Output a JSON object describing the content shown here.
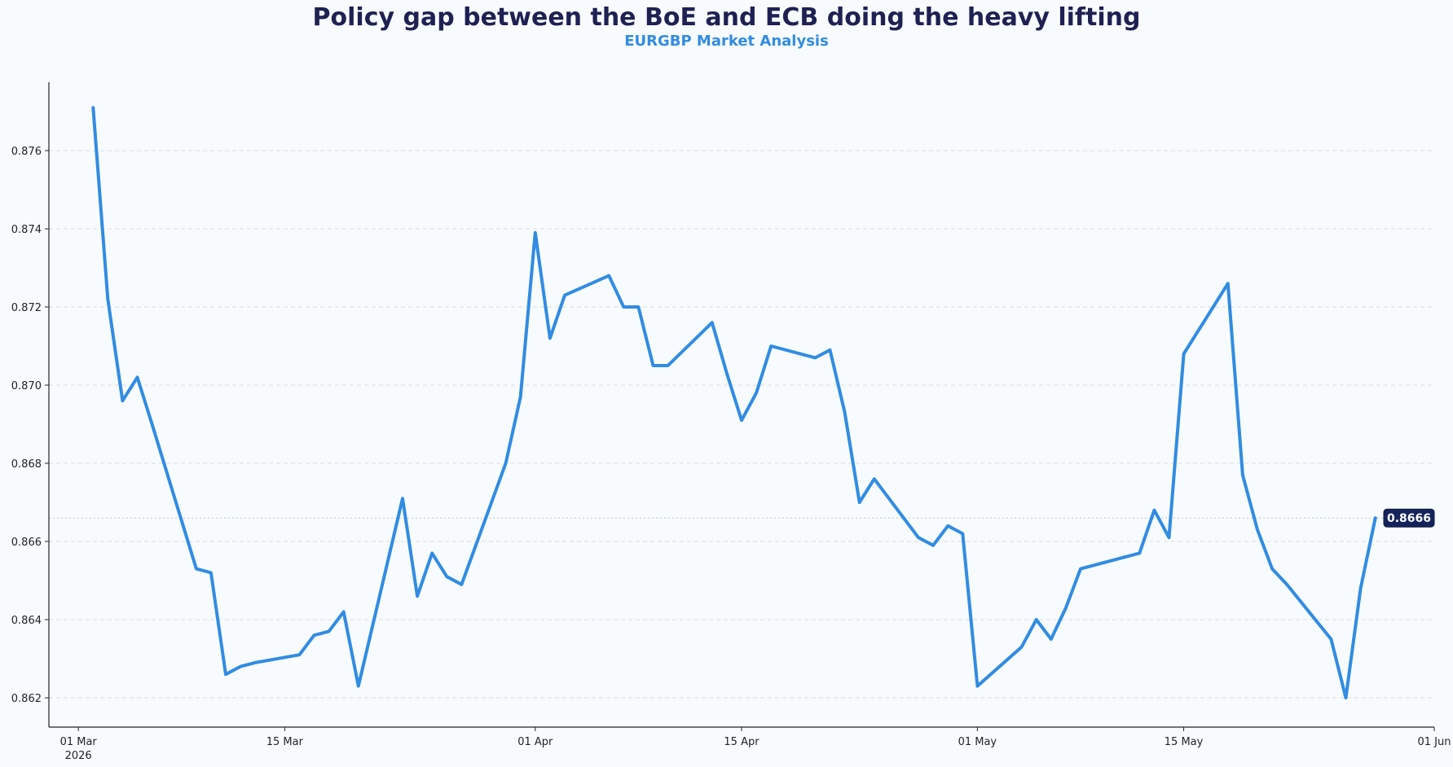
{
  "colors": {
    "background": "#f8fbfe",
    "title": "#1e2152",
    "subtitle": "#318ce2",
    "line": "#318ce2",
    "badge_bg": "#14235a",
    "badge_text": "#ffffff",
    "grid": "#d8dde3",
    "axis": "#222222"
  },
  "chart_data": {
    "type": "line",
    "title": "Policy gap between the BoE and ECB doing the heavy lifting",
    "subtitle": "EURGBP Market Analysis",
    "xlabel": "",
    "ylabel": "",
    "grid": "horizontal dashed",
    "xlim": [
      "2026-02-27",
      "2026-06-01"
    ],
    "ylim": [
      0.86125,
      0.87775
    ],
    "y_ticks": [
      0.862,
      0.864,
      0.866,
      0.868,
      0.87,
      0.872,
      0.874,
      0.876
    ],
    "y_tick_labels": [
      "0.862",
      "0.864",
      "0.866",
      "0.868",
      "0.870",
      "0.872",
      "0.874",
      "0.876"
    ],
    "x_ticks": [
      {
        "date": "2026-03-01",
        "label": "01 Mar",
        "sublabel": "2026"
      },
      {
        "date": "2026-03-15",
        "label": "15 Mar",
        "sublabel": ""
      },
      {
        "date": "2026-04-01",
        "label": "01 Apr",
        "sublabel": ""
      },
      {
        "date": "2026-04-15",
        "label": "15 Apr",
        "sublabel": ""
      },
      {
        "date": "2026-05-01",
        "label": "01 May",
        "sublabel": ""
      },
      {
        "date": "2026-05-15",
        "label": "15 May",
        "sublabel": ""
      },
      {
        "date": "2026-06-01",
        "label": "01 Jun",
        "sublabel": ""
      }
    ],
    "last_value_label": "0.8666",
    "reference_line": 0.8666,
    "series": [
      {
        "x": [
          "2026-03-02",
          "2026-03-03",
          "2026-03-04",
          "2026-03-05",
          "2026-03-06",
          "2026-03-09",
          "2026-03-10",
          "2026-03-11",
          "2026-03-12",
          "2026-03-13",
          "2026-03-16",
          "2026-03-17",
          "2026-03-18",
          "2026-03-19",
          "2026-03-20",
          "2026-03-23",
          "2026-03-24",
          "2026-03-25",
          "2026-03-26",
          "2026-03-27",
          "2026-03-30",
          "2026-03-31",
          "2026-04-01",
          "2026-04-02",
          "2026-04-03",
          "2026-04-06",
          "2026-04-07",
          "2026-04-08",
          "2026-04-09",
          "2026-04-10",
          "2026-04-13",
          "2026-04-14",
          "2026-04-15",
          "2026-04-16",
          "2026-04-17",
          "2026-04-20",
          "2026-04-21",
          "2026-04-22",
          "2026-04-23",
          "2026-04-24",
          "2026-04-27",
          "2026-04-28",
          "2026-04-29",
          "2026-04-30",
          "2026-05-01",
          "2026-05-04",
          "2026-05-05",
          "2026-05-06",
          "2026-05-07",
          "2026-05-08",
          "2026-05-11",
          "2026-05-12",
          "2026-05-13",
          "2026-05-14",
          "2026-05-15",
          "2026-05-18",
          "2026-05-19",
          "2026-05-20",
          "2026-05-21",
          "2026-05-22",
          "2026-05-25",
          "2026-05-26",
          "2026-05-27",
          "2026-05-28"
        ],
        "y": [
          0.8771,
          0.8722,
          0.8696,
          0.8702,
          0.869,
          0.8653,
          0.8652,
          0.8626,
          0.8628,
          0.8629,
          0.8631,
          0.8636,
          0.8637,
          0.8642,
          0.8623,
          0.8671,
          0.8646,
          0.8657,
          0.8651,
          0.8649,
          0.868,
          0.8697,
          0.8739,
          0.8712,
          0.8723,
          0.8728,
          0.872,
          0.872,
          0.8705,
          0.8705,
          0.8716,
          0.8703,
          0.8691,
          0.8698,
          0.871,
          0.8707,
          0.8709,
          0.8693,
          0.867,
          0.8676,
          0.8661,
          0.8659,
          0.8664,
          0.8662,
          0.8623,
          0.8633,
          0.864,
          0.8635,
          0.8643,
          0.8653,
          0.8656,
          0.8657,
          0.8668,
          0.8661,
          0.8708,
          0.8726,
          0.8677,
          0.8663,
          0.8653,
          0.8649,
          0.8635,
          0.862,
          0.8648,
          0.8666
        ]
      }
    ]
  }
}
